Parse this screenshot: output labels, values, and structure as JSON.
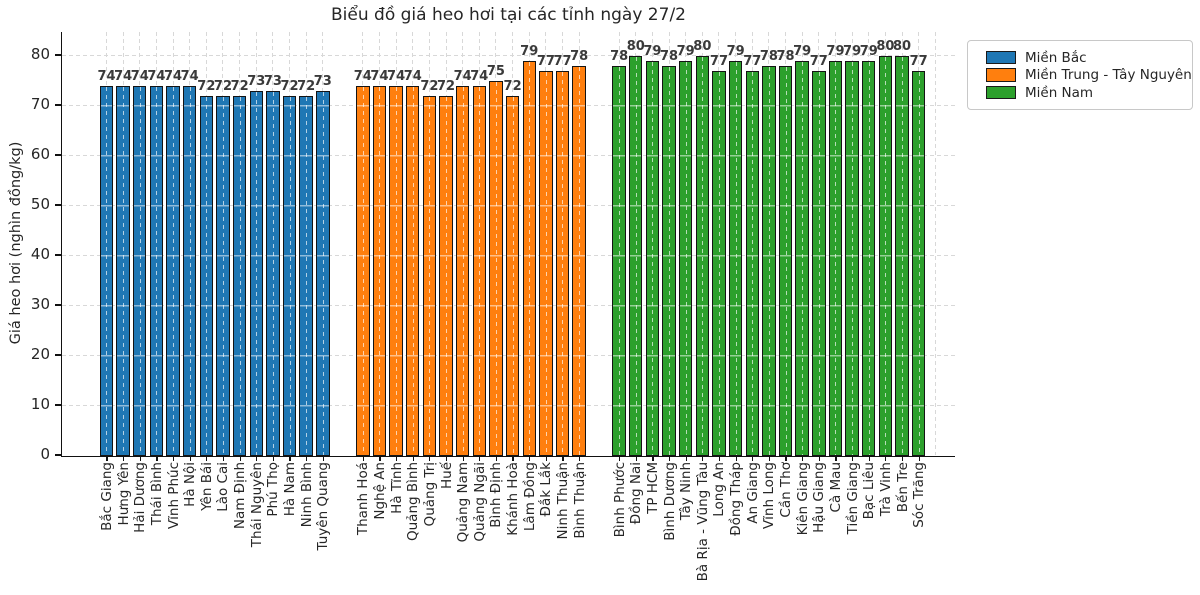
{
  "chart_data": {
    "type": "bar",
    "title": "Biểu đồ giá heo hơi tại các tỉnh ngày 27/2",
    "ylabel": "Giá heo hơi (nghìn đồng/kg)",
    "ylim": [
      0,
      80
    ],
    "yticks": [
      0,
      10,
      20,
      30,
      40,
      50,
      60,
      70,
      80
    ],
    "grid": {
      "style": "dashed",
      "color": "#d8d8d8"
    },
    "bar_edge_color": "#141414",
    "bar_label_color": "#3a3a3a",
    "legend_position": "upper-right-outside",
    "series": [
      {
        "name": "Miền Bắc",
        "color": "#1f77b4",
        "categories": [
          "Bắc Giang",
          "Hưng Yên",
          "Hải Dương",
          "Thái Bình",
          "Vĩnh Phúc",
          "Hà Nội",
          "Yên Bái",
          "Lào Cai",
          "Nam Định",
          "Thái Nguyên",
          "Phú Thọ",
          "Hà Nam",
          "Ninh Bình",
          "Tuyên Quang"
        ],
        "values": [
          74,
          74,
          74,
          74,
          74,
          74,
          72,
          72,
          72,
          73,
          73,
          72,
          72,
          73
        ]
      },
      {
        "name": "Miền Trung - Tây Nguyên",
        "color": "#ff7f0e",
        "categories": [
          "Thanh Hoá",
          "Nghệ An",
          "Hà Tĩnh",
          "Quảng Bình",
          "Quảng Trị",
          "Huế",
          "Quảng Nam",
          "Quảng Ngãi",
          "Bình Định",
          "Khánh Hoà",
          "Lâm Đồng",
          "Đắk Lắk",
          "Ninh Thuận",
          "Bình Thuận"
        ],
        "values": [
          74,
          74,
          74,
          74,
          72,
          72,
          74,
          74,
          75,
          72,
          79,
          77,
          77,
          78
        ]
      },
      {
        "name": "Miền Nam",
        "color": "#2ca02c",
        "categories": [
          "Bình Phước",
          "Đồng Nai",
          "TP HCM",
          "Bình Dương",
          "Tây Ninh",
          "Bà Rịa - Vũng Tàu",
          "Long An",
          "Đồng Tháp",
          "An Giang",
          "Vĩnh Long",
          "Cần Thơ",
          "Kiên Giang",
          "Hậu Giang",
          "Cà Mau",
          "Tiền Giang",
          "Bạc Liêu",
          "Trà Vinh",
          "Bến Tre",
          "Sóc Trăng"
        ],
        "values": [
          78,
          80,
          79,
          78,
          79,
          80,
          77,
          79,
          77,
          78,
          78,
          79,
          77,
          79,
          79,
          79,
          80,
          80,
          77
        ]
      }
    ]
  }
}
